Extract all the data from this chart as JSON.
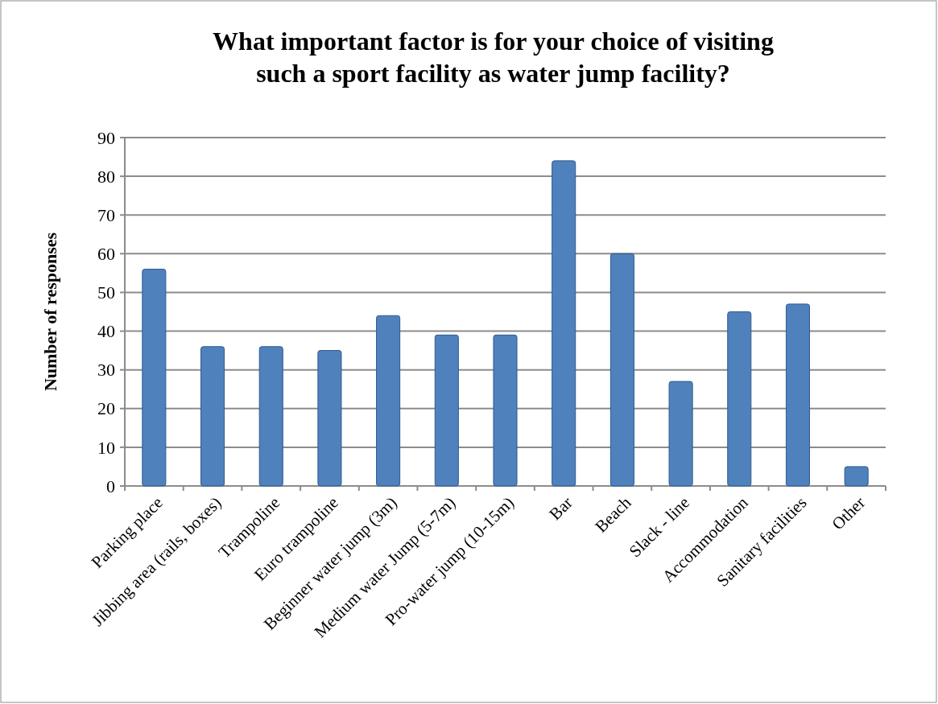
{
  "chart_data": {
    "type": "bar",
    "title": "What important factor is for your choice of visiting such a sport facility as water jump facility?",
    "ylabel": "Number of responses",
    "categories": [
      "Parking place",
      "Jibbing area (rails, boxes)",
      "Trampoline",
      "Euro trampoline",
      "Beginner water  jump (3m)",
      "Medium water Jump (5-7m)",
      "Pro-water jump (10-15m)",
      "Bar",
      "Beach",
      "Slack - line",
      "Accommodation",
      "Sanitary facilities",
      "Other"
    ],
    "values": [
      56,
      36,
      36,
      35,
      44,
      39,
      39,
      84,
      60,
      27,
      45,
      47,
      5
    ],
    "color": "#4f81bd",
    "ylim": [
      0,
      90
    ],
    "yticks": [
      0,
      10,
      20,
      30,
      40,
      50,
      60,
      70,
      80,
      90
    ],
    "grid": "y"
  }
}
